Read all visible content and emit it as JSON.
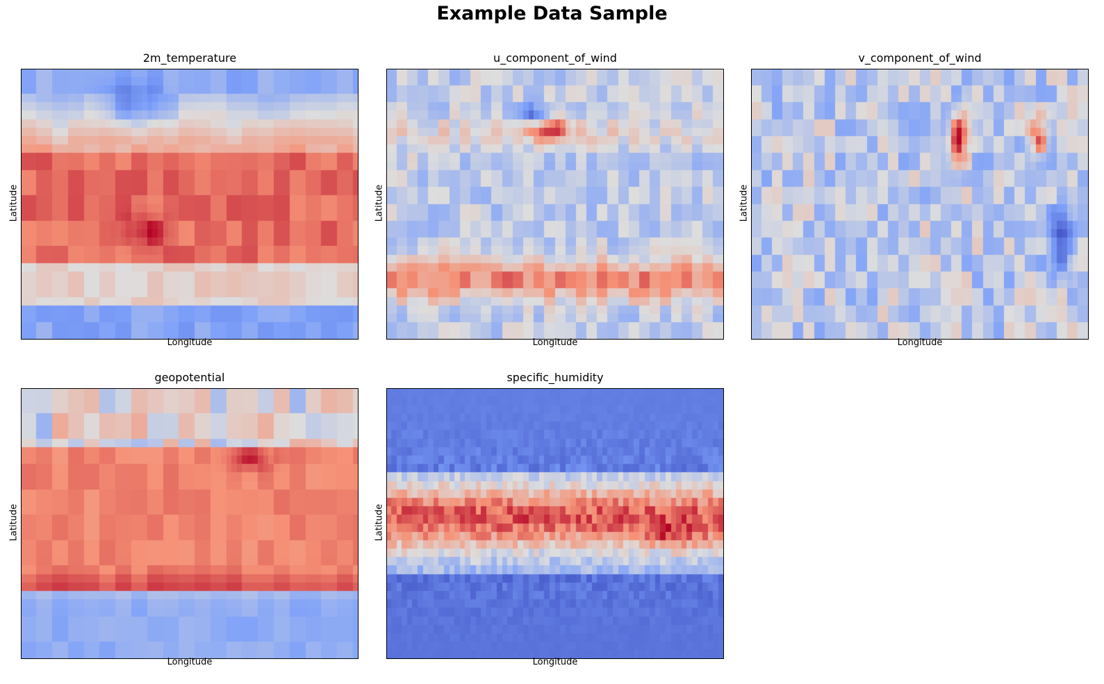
{
  "figure": {
    "title": "Example Data Sample"
  },
  "chart_data": [
    {
      "type": "heatmap",
      "title": "2m_temperature",
      "xlabel": "Longitude",
      "ylabel": "Latitude",
      "colormap": "coolwarm",
      "grid": false,
      "pattern": "temperature"
    },
    {
      "type": "heatmap",
      "title": "u_component_of_wind",
      "xlabel": "Longitude",
      "ylabel": "Latitude",
      "colormap": "coolwarm",
      "grid": false,
      "pattern": "uwind"
    },
    {
      "type": "heatmap",
      "title": "v_component_of_wind",
      "xlabel": "Longitude",
      "ylabel": "Latitude",
      "colormap": "coolwarm",
      "grid": false,
      "pattern": "vwind"
    },
    {
      "type": "heatmap",
      "title": "geopotential",
      "xlabel": "Longitude",
      "ylabel": "Latitude",
      "colormap": "coolwarm",
      "grid": false,
      "pattern": "geopotential"
    },
    {
      "type": "heatmap",
      "title": "specific_humidity",
      "xlabel": "Longitude",
      "ylabel": "Latitude",
      "colormap": "coolwarm",
      "grid": false,
      "pattern": "humidity"
    }
  ]
}
